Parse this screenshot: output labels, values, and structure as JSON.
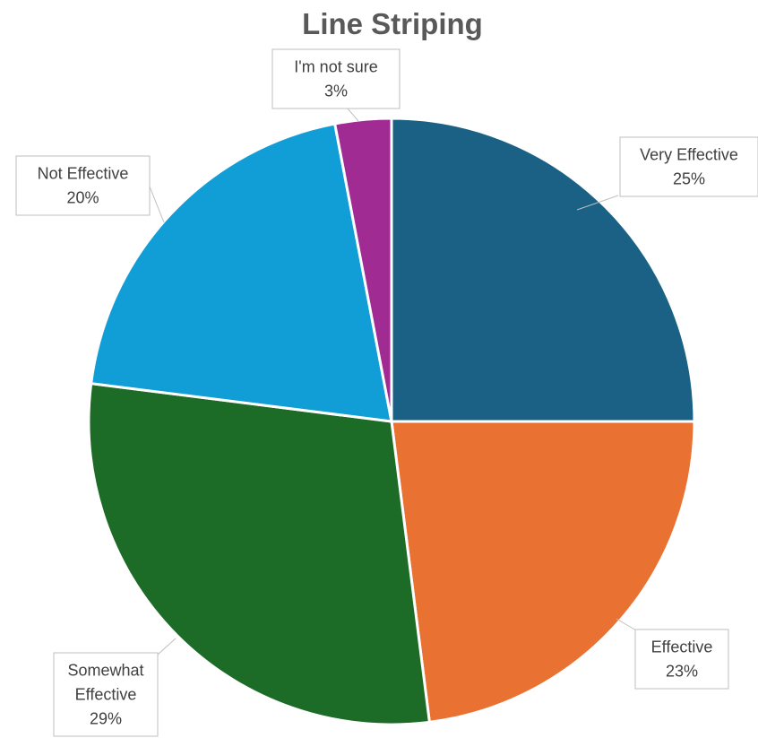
{
  "chart_data": {
    "type": "pie",
    "title": "Line Striping",
    "slices": [
      {
        "label": "Very Effective",
        "value": 25,
        "value_label": "25%",
        "color": "#1b6185"
      },
      {
        "label": "Effective",
        "value": 23,
        "value_label": "23%",
        "color": "#e97232"
      },
      {
        "label": "Somewhat Effective",
        "value": 29,
        "value_label": "29%",
        "color": "#1c6b27"
      },
      {
        "label": "Not Effective",
        "value": 20,
        "value_label": "20%",
        "color": "#119dd6"
      },
      {
        "label": "I'm not sure",
        "value": 3,
        "value_label": "3%",
        "color": "#a02b93"
      }
    ],
    "start_angle": "12 o'clock",
    "direction": "clockwise",
    "legend": "none",
    "data_labels": "callouts"
  }
}
